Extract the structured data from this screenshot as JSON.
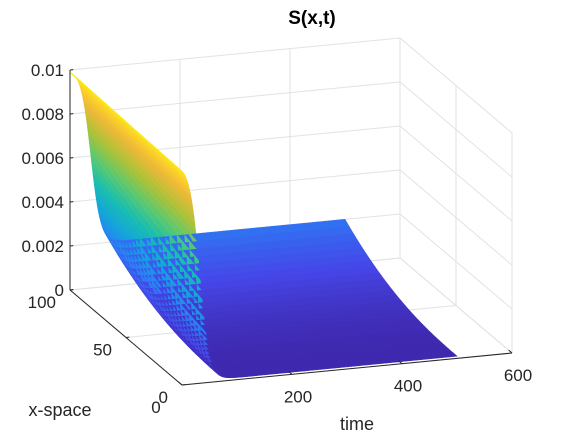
{
  "chart_data": {
    "type": "surface",
    "title": "S(x,t)",
    "xlabel": "time",
    "ylabel": "x-space",
    "zlabel": "",
    "xlim": [
      0,
      600
    ],
    "ylim": [
      0,
      100
    ],
    "zlim": [
      0,
      0.01
    ],
    "x_ticks": [
      "0",
      "200",
      "400",
      "600"
    ],
    "y_ticks": [
      "0",
      "50",
      "100"
    ],
    "z_ticks": [
      "0",
      "0.002",
      "0.004",
      "0.006",
      "0.008",
      "0.01"
    ],
    "grid": true,
    "colormap": "parula",
    "surface": {
      "time_extent": [
        0,
        500
      ],
      "space_extent": [
        0,
        100
      ],
      "initial_value": 0.01,
      "final_value": 0.002,
      "transition_time_start": 10,
      "transition_time_end": 90,
      "tail_decay_to": 0.0001,
      "sample_profile_x_eq_100": [
        {
          "t": 0,
          "S": 0.01
        },
        {
          "t": 20,
          "S": 0.0095
        },
        {
          "t": 40,
          "S": 0.0075
        },
        {
          "t": 60,
          "S": 0.0045
        },
        {
          "t": 80,
          "S": 0.0024
        },
        {
          "t": 100,
          "S": 0.0021
        },
        {
          "t": 300,
          "S": 0.002
        },
        {
          "t": 500,
          "S": 0.002
        }
      ],
      "sample_profile_x_eq_0": [
        {
          "t": 0,
          "S": 0.01
        },
        {
          "t": 20,
          "S": 0.0085
        },
        {
          "t": 40,
          "S": 0.004
        },
        {
          "t": 60,
          "S": 0.0012
        },
        {
          "t": 80,
          "S": 0.0003
        },
        {
          "t": 100,
          "S": 0.0001
        },
        {
          "t": 500,
          "S": 0.0001
        }
      ]
    }
  }
}
